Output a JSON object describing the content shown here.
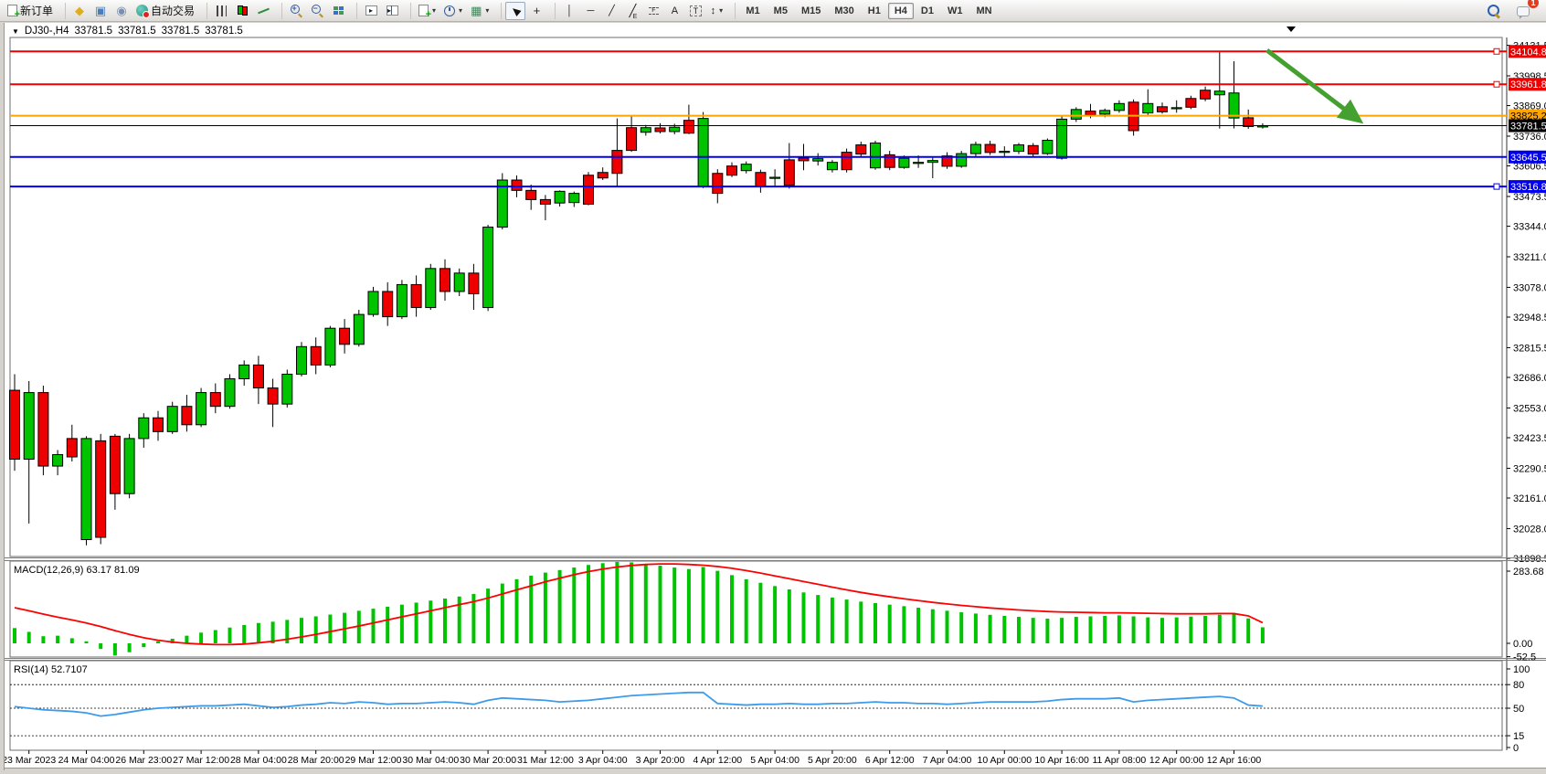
{
  "toolbar": {
    "items": [
      {
        "name": "new-order-button",
        "kind": "doc",
        "label": "新订单"
      },
      {
        "name": "sep1",
        "kind": "sep"
      },
      {
        "name": "metaeditor-button",
        "kind": "glyph",
        "glyph": "◆",
        "cls": "ic-diamond"
      },
      {
        "name": "terminal-button",
        "kind": "glyph",
        "glyph": "▣",
        "cls": "ic-term"
      },
      {
        "name": "strategy-tester-button",
        "kind": "glyph",
        "glyph": "◉",
        "cls": "ic-tester"
      },
      {
        "name": "autotrading-button",
        "kind": "auto",
        "label": "自动交易"
      },
      {
        "name": "sep2",
        "kind": "sep"
      },
      {
        "name": "bar-chart-button",
        "kind": "css",
        "cls": "ic-bars"
      },
      {
        "name": "candlestick-chart-button",
        "kind": "css",
        "cls": "ic-candles"
      },
      {
        "name": "line-chart-button",
        "kind": "css",
        "cls": "ic-linechart"
      },
      {
        "name": "sep3",
        "kind": "sep"
      },
      {
        "name": "zoom-in-button",
        "kind": "zoom",
        "sign": "+"
      },
      {
        "name": "zoom-out-button",
        "kind": "zoom",
        "sign": "−"
      },
      {
        "name": "tile-windows-button",
        "kind": "css",
        "cls": "ic-tile"
      },
      {
        "name": "sep4",
        "kind": "sep"
      },
      {
        "name": "auto-scroll-button",
        "kind": "chartbox",
        "inner": "▸"
      },
      {
        "name": "chart-shift-button",
        "kind": "chartbox",
        "inner": "▸▏"
      },
      {
        "name": "sep5",
        "kind": "sep"
      },
      {
        "name": "new-chart-button",
        "kind": "doc",
        "dropdown": true
      },
      {
        "name": "periods-button",
        "kind": "css",
        "cls": "ic-clock",
        "dropdown": true
      },
      {
        "name": "templates-button",
        "kind": "glyph",
        "glyph": "▦",
        "cls": "ic-template",
        "dropdown": true
      },
      {
        "name": "sep6",
        "kind": "sep"
      },
      {
        "name": "cursor-button",
        "kind": "css",
        "cls": "ic-cursor",
        "pressed": true
      },
      {
        "name": "crosshair-button",
        "kind": "text",
        "glyph": "+",
        "big": true
      },
      {
        "name": "sep7",
        "kind": "sep"
      },
      {
        "name": "vertical-line-button",
        "kind": "text",
        "glyph": "│"
      },
      {
        "name": "horizontal-line-button",
        "kind": "text",
        "glyph": "─"
      },
      {
        "name": "trendline-button",
        "kind": "text",
        "glyph": "╱"
      },
      {
        "name": "equidistant-channel-button",
        "kind": "sub",
        "glyph": "╱",
        "sub": "E"
      },
      {
        "name": "fibonacci-button",
        "kind": "dash",
        "sub": "F"
      },
      {
        "name": "text-button",
        "kind": "text",
        "glyph": "A"
      },
      {
        "name": "text-label-button",
        "kind": "labelbox",
        "glyph": "T"
      },
      {
        "name": "arrows-button",
        "kind": "text",
        "glyph": "↕",
        "dropdown": true
      },
      {
        "name": "sep8",
        "kind": "sep"
      }
    ],
    "timeframes": {
      "options": [
        "M1",
        "M5",
        "M15",
        "M30",
        "H1",
        "H4",
        "D1",
        "W1",
        "MN"
      ],
      "active": "H4"
    },
    "right": {
      "notification_badge": "1"
    }
  },
  "chart": {
    "title": {
      "dropdown_icon": "▼",
      "symbol_period": "DJ30-,H4",
      "open": "33781.5",
      "high": "33781.5",
      "low": "33781.5",
      "close": "33781.5"
    },
    "price_axis_ticks": [
      34131.5,
      33998.5,
      33869.0,
      33736.0,
      33606.5,
      33473.5,
      33344.0,
      33211.0,
      33078.0,
      32948.5,
      32815.5,
      32686.0,
      32553.0,
      32423.5,
      32290.5,
      32161.0,
      32028.0,
      31898.5
    ],
    "horizontal_lines": [
      {
        "label": "34104.8",
        "price": 34104.8,
        "color": "#ee0000",
        "text_color": "#ffffff",
        "handle": true
      },
      {
        "label": "33961.8",
        "price": 33961.8,
        "color": "#ee0000",
        "text_color": "#ffffff",
        "handle": true
      },
      {
        "label": "33825.2",
        "price": 33825.2,
        "color": "#ffa500",
        "text_color": "#000000",
        "handle": false
      },
      {
        "label": "33645.5",
        "price": 33645.5,
        "color": "#0000ee",
        "text_color": "#ffffff",
        "handle": false
      },
      {
        "label": "33516.8",
        "price": 33516.8,
        "color": "#0000ee",
        "text_color": "#ffffff",
        "handle": true
      }
    ],
    "current_price": {
      "label": "33781.5",
      "price": 33781.5,
      "line_color": "#000000",
      "box_color": "#000000",
      "text_color": "#ffffff"
    },
    "arrow_object": {
      "color": "#45a12f",
      "from_index": 87.3,
      "from_price": 34110,
      "to_index": 93.7,
      "to_price": 33806
    },
    "time_labels": [
      "23 Mar 2023",
      "24 Mar 04:00",
      "26 Mar 23:00",
      "27 Mar 12:00",
      "28 Mar 04:00",
      "28 Mar 20:00",
      "29 Mar 12:00",
      "30 Mar 04:00",
      "30 Mar 20:00",
      "31 Mar 12:00",
      "3 Apr 04:00",
      "3 Apr 20:00",
      "4 Apr 12:00",
      "5 Apr 04:00",
      "5 Apr 20:00",
      "6 Apr 12:00",
      "7 Apr 04:00",
      "10 Apr 00:00",
      "10 Apr 16:00",
      "11 Apr 08:00",
      "12 Apr 00:00",
      "12 Apr 16:00"
    ],
    "colors": {
      "up": "#00c400",
      "down": "#ee0000",
      "wick": "#000000",
      "panel_border": "#6e6e6e",
      "macd_hist": "#00c400",
      "macd_signal": "#ff0000",
      "rsi_line": "#3e9be9"
    }
  },
  "chart_data": {
    "type": "candlestick",
    "symbol": "DJ30-",
    "period": "H4",
    "ohlc_current": [
      33781.5,
      33781.5,
      33781.5,
      33781.5
    ],
    "candles": [
      [
        32630,
        32700,
        32280,
        32330
      ],
      [
        32330,
        32670,
        32050,
        32620
      ],
      [
        32620,
        32650,
        32260,
        32300
      ],
      [
        32300,
        32370,
        32260,
        32350
      ],
      [
        32420,
        32480,
        32320,
        32340
      ],
      [
        31980,
        32430,
        31955,
        32420
      ],
      [
        32410,
        32440,
        31960,
        31990
      ],
      [
        32430,
        32440,
        32110,
        32180
      ],
      [
        32180,
        32440,
        32160,
        32420
      ],
      [
        32420,
        32530,
        32380,
        32510
      ],
      [
        32510,
        32540,
        32410,
        32450
      ],
      [
        32450,
        32580,
        32440,
        32560
      ],
      [
        32560,
        32610,
        32450,
        32480
      ],
      [
        32480,
        32640,
        32470,
        32620
      ],
      [
        32620,
        32660,
        32530,
        32560
      ],
      [
        32560,
        32700,
        32550,
        32680
      ],
      [
        32680,
        32760,
        32650,
        32740
      ],
      [
        32740,
        32780,
        32570,
        32640
      ],
      [
        32640,
        32680,
        32470,
        32570
      ],
      [
        32570,
        32720,
        32555,
        32700
      ],
      [
        32700,
        32840,
        32690,
        32820
      ],
      [
        32820,
        32860,
        32700,
        32740
      ],
      [
        32740,
        32910,
        32730,
        32900
      ],
      [
        32900,
        32940,
        32790,
        32830
      ],
      [
        32830,
        32980,
        32820,
        32960
      ],
      [
        32960,
        33080,
        32950,
        33060
      ],
      [
        33060,
        33100,
        32910,
        32950
      ],
      [
        32950,
        33110,
        32940,
        33090
      ],
      [
        33090,
        33130,
        32950,
        32990
      ],
      [
        32990,
        33180,
        32980,
        33160
      ],
      [
        33160,
        33200,
        33020,
        33060
      ],
      [
        33060,
        33160,
        33040,
        33140
      ],
      [
        33140,
        33180,
        32980,
        33050
      ],
      [
        32990,
        33350,
        32975,
        33340
      ],
      [
        33340,
        33575,
        33330,
        33545
      ],
      [
        33545,
        33565,
        33470,
        33500
      ],
      [
        33500,
        33525,
        33415,
        33460
      ],
      [
        33460,
        33480,
        33370,
        33440
      ],
      [
        33445,
        33500,
        33430,
        33496
      ],
      [
        33447,
        33495,
        33428,
        33487
      ],
      [
        33566,
        33580,
        33435,
        33440
      ],
      [
        33578,
        33600,
        33545,
        33554
      ],
      [
        33674,
        33813,
        33517,
        33574
      ],
      [
        33773,
        33822,
        33668,
        33674
      ],
      [
        33753,
        33785,
        33738,
        33773
      ],
      [
        33772,
        33792,
        33748,
        33756
      ],
      [
        33756,
        33790,
        33744,
        33775
      ],
      [
        33805,
        33873,
        33745,
        33749
      ],
      [
        33517,
        33841,
        33510,
        33813
      ],
      [
        33574,
        33592,
        33444,
        33487
      ],
      [
        33606,
        33622,
        33558,
        33566
      ],
      [
        33586,
        33626,
        33574,
        33614
      ],
      [
        33578,
        33590,
        33490,
        33519
      ],
      [
        33554,
        33592,
        33520,
        33557
      ],
      [
        33633,
        33706,
        33508,
        33522
      ],
      [
        33641,
        33702,
        33588,
        33629
      ],
      [
        33628,
        33662,
        33608,
        33638
      ],
      [
        33590,
        33632,
        33578,
        33622
      ],
      [
        33666,
        33682,
        33578,
        33590
      ],
      [
        33698,
        33712,
        33648,
        33658
      ],
      [
        33598,
        33716,
        33590,
        33706
      ],
      [
        33655,
        33672,
        33588,
        33600
      ],
      [
        33600,
        33652,
        33594,
        33640
      ],
      [
        33620,
        33652,
        33598,
        33622
      ],
      [
        33622,
        33642,
        33553,
        33630
      ],
      [
        33650,
        33666,
        33594,
        33605
      ],
      [
        33605,
        33672,
        33598,
        33660
      ],
      [
        33660,
        33712,
        33648,
        33700
      ],
      [
        33700,
        33716,
        33654,
        33665
      ],
      [
        33668,
        33692,
        33648,
        33670
      ],
      [
        33670,
        33706,
        33658,
        33698
      ],
      [
        33695,
        33706,
        33648,
        33658
      ],
      [
        33660,
        33726,
        33654,
        33718
      ],
      [
        33640,
        33822,
        33634,
        33810
      ],
      [
        33810,
        33862,
        33798,
        33852
      ],
      [
        33845,
        33876,
        33814,
        33828
      ],
      [
        33832,
        33856,
        33818,
        33848
      ],
      [
        33848,
        33892,
        33838,
        33878
      ],
      [
        33884,
        33896,
        33738,
        33760
      ],
      [
        33837,
        33940,
        33828,
        33878
      ],
      [
        33864,
        33882,
        33834,
        33842
      ],
      [
        33858,
        33892,
        33838,
        33860
      ],
      [
        33900,
        33912,
        33854,
        33862
      ],
      [
        33936,
        33952,
        33888,
        33898
      ],
      [
        33916,
        34105,
        33769,
        33932
      ],
      [
        33815,
        34062,
        33770,
        33924
      ],
      [
        33816,
        33852,
        33768,
        33778
      ],
      [
        33776,
        33792,
        33769,
        33782
      ]
    ],
    "indicators": [
      {
        "name": "MACD",
        "label": "MACD(12,26,9) 63.17 81.09",
        "params": [
          12,
          26,
          9
        ],
        "current_values": [
          63.17,
          81.09
        ],
        "axis_ticks": [
          "283.68",
          "0.00",
          "-52.5"
        ],
        "histogram": [
          60,
          45,
          28,
          30,
          20,
          8,
          -22,
          -48,
          -35,
          -15,
          8,
          18,
          30,
          42,
          52,
          62,
          72,
          80,
          85,
          92,
          100,
          106,
          113,
          120,
          128,
          136,
          144,
          152,
          160,
          168,
          176,
          184,
          194,
          215,
          235,
          252,
          266,
          278,
          288,
          298,
          308,
          315,
          320,
          318,
          312,
          305,
          298,
          292,
          300,
          285,
          268,
          252,
          238,
          225,
          212,
          200,
          190,
          180,
          172,
          164,
          158,
          152,
          146,
          140,
          134,
          128,
          122,
          117,
          112,
          108,
          104,
          100,
          97,
          100,
          104,
          106,
          108,
          110,
          106,
          102,
          100,
          102,
          105,
          108,
          112,
          115,
          98,
          63
        ],
        "signal": [
          140,
          128,
          115,
          103,
          92,
          80,
          66,
          50,
          35,
          22,
          12,
          5,
          0,
          -3,
          -5,
          -5,
          -3,
          2,
          8,
          16,
          25,
          35,
          46,
          57,
          68,
          80,
          92,
          104,
          116,
          128,
          140,
          152,
          164,
          178,
          194,
          210,
          226,
          242,
          256,
          270,
          282,
          292,
          300,
          306,
          310,
          312,
          312,
          310,
          307,
          302,
          295,
          286,
          276,
          265,
          254,
          243,
          232,
          221,
          210,
          200,
          191,
          183,
          175,
          168,
          161,
          155,
          149,
          144,
          139,
          135,
          131,
          128,
          125,
          123,
          122,
          121,
          120,
          120,
          119,
          118,
          117,
          116,
          116,
          116,
          117,
          117,
          108,
          81
        ]
      },
      {
        "name": "RSI",
        "label": "RSI(14) 52.7107",
        "params": [
          14
        ],
        "current_value": 52.7107,
        "axis_ticks": [
          "100",
          "80",
          "50",
          "15",
          "0"
        ],
        "dashed_levels": [
          80,
          50,
          15
        ],
        "series": [
          52,
          50,
          48,
          47,
          46,
          44,
          40,
          42,
          45,
          48,
          50,
          51,
          52,
          53,
          53,
          54,
          55,
          53,
          51,
          52,
          54,
          55,
          57,
          56,
          58,
          57,
          55,
          56,
          56,
          57,
          58,
          57,
          55,
          60,
          63,
          62,
          61,
          60,
          58,
          59,
          60,
          62,
          64,
          66,
          67,
          68,
          69,
          70,
          70,
          56,
          55,
          54,
          55,
          55,
          56,
          55,
          55,
          56,
          56,
          57,
          58,
          57,
          57,
          56,
          56,
          55,
          56,
          57,
          58,
          58,
          58,
          58,
          59,
          61,
          62,
          62,
          62,
          63,
          58,
          60,
          61,
          62,
          63,
          64,
          65,
          63,
          54,
          52.7
        ]
      }
    ]
  }
}
